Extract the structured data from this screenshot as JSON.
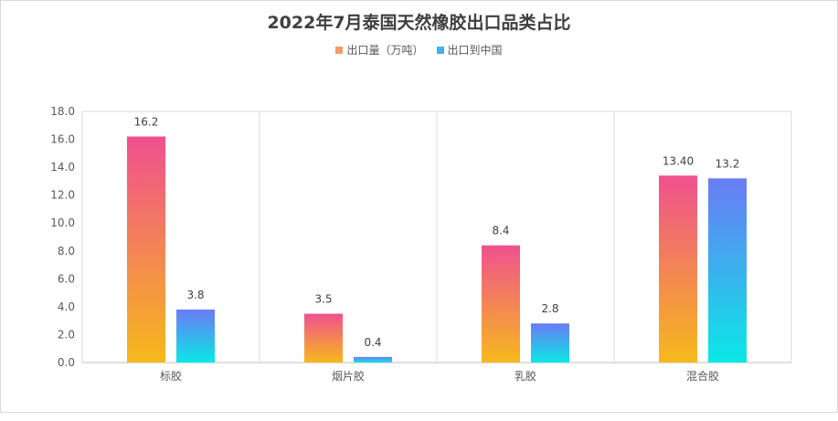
{
  "chart_data": {
    "type": "bar",
    "title": "2022年7月泰国天然橡胶出口品类占比",
    "categories": [
      "标胶",
      "烟片胶",
      "乳胶",
      "混合胶"
    ],
    "series": [
      {
        "name": "出口量（万吨）",
        "values": [
          16.2,
          3.5,
          8.4,
          13.4
        ],
        "labels": [
          "16.2",
          "3.5",
          "8.4",
          "13.40"
        ],
        "gradient": [
          "#f0508f",
          "#f6b91c"
        ]
      },
      {
        "name": "出口到中国",
        "values": [
          3.8,
          0.4,
          2.8,
          13.2
        ],
        "labels": [
          "3.8",
          "0.4",
          "2.8",
          "13.2"
        ],
        "gradient": [
          "#6b7bf5",
          "#0ae8e6"
        ]
      }
    ],
    "ylim": [
      0,
      18
    ],
    "yticks": [
      "0.0",
      "2.0",
      "4.0",
      "6.0",
      "8.0",
      "10.0",
      "12.0",
      "14.0",
      "16.0",
      "18.0"
    ],
    "xlabel": "",
    "ylabel": "",
    "legend_position": "top",
    "grid": "vertical category separators",
    "colors": {
      "legend_series1": "#f49a6a",
      "legend_series2": "#3fb3f2",
      "axis": "#bfbfbf",
      "text": "#595959",
      "title": "#404040"
    }
  }
}
